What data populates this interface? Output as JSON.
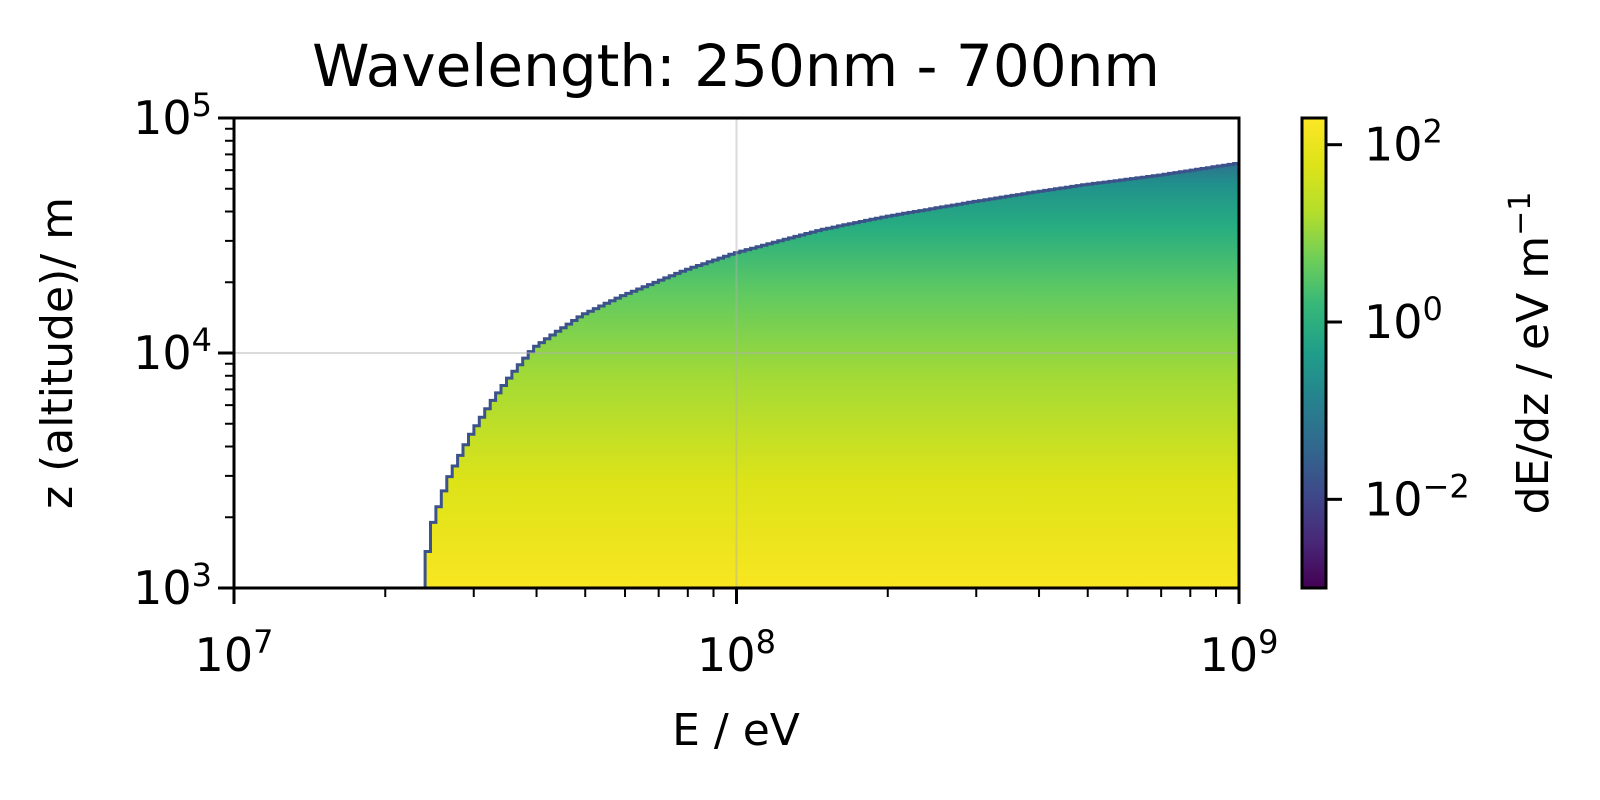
{
  "chart_data": {
    "type": "heatmap",
    "title": "Wavelength: 250nm - 700nm",
    "xlabel": "E / eV",
    "ylabel": "z (altitude)/ m",
    "x_scale": "log",
    "y_scale": "log",
    "xlim": [
      10000000,
      1000000000
    ],
    "ylim": [
      1000,
      100000
    ],
    "x_ticks": [
      {
        "value": 10000000,
        "base": "10",
        "exp": "7"
      },
      {
        "value": 100000000,
        "base": "10",
        "exp": "8"
      },
      {
        "value": 1000000000,
        "base": "10",
        "exp": "9"
      }
    ],
    "y_ticks": [
      {
        "value": 1000,
        "base": "10",
        "exp": "3"
      },
      {
        "value": 10000,
        "base": "10",
        "exp": "4"
      },
      {
        "value": 100000,
        "base": "10",
        "exp": "5"
      }
    ],
    "grid": true,
    "colormap": "viridis",
    "colorbar": {
      "label_main": "dE/dz / eV m",
      "label_exp": "−1",
      "scale": "log",
      "range": [
        0.001,
        200
      ],
      "ticks": [
        {
          "value": 0.01,
          "base": "10",
          "exp": "−2"
        },
        {
          "value": 1,
          "base": "10",
          "exp": "0"
        },
        {
          "value": 100,
          "base": "10",
          "exp": "2"
        }
      ]
    },
    "boundary": {
      "description": "upper altitude edge of non-empty region vs energy",
      "E": [
        24000000,
        25000000,
        27000000,
        30000000,
        33000000,
        36000000,
        40000000,
        45000000,
        50000000,
        60000000,
        70000000,
        80000000,
        90000000,
        100000000,
        120000000,
        150000000,
        200000000,
        300000000,
        400000000,
        500000000,
        700000000,
        1000000000
      ],
      "z": [
        1000,
        1800,
        2900,
        4500,
        6200,
        8000,
        10500,
        12500,
        14500,
        17500,
        20000,
        22500,
        24500,
        26500,
        29500,
        33500,
        38000,
        44000,
        48500,
        52000,
        57000,
        64000
      ]
    },
    "peak_value": 200
  }
}
